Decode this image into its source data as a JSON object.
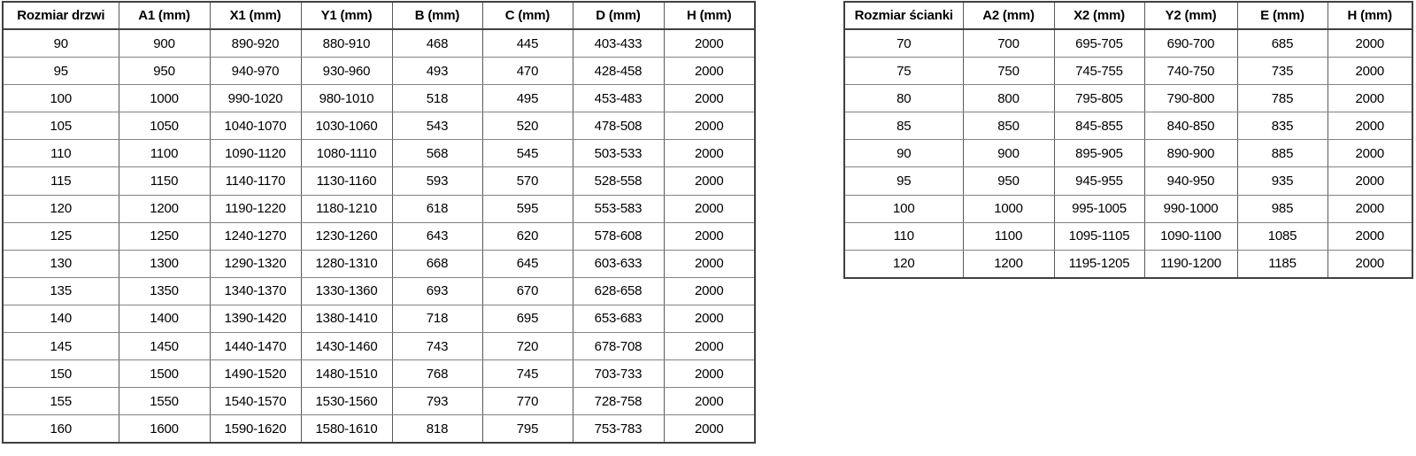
{
  "page": {
    "background": "#ffffff",
    "text_color": "#000000",
    "border_dark": "#404040",
    "border_gray": "#828282"
  },
  "left_table": {
    "headers": [
      "Rozmiar drzwi",
      "A1 (mm)",
      "X1 (mm)",
      "Y1 (mm)",
      "B (mm)",
      "C (mm)",
      "D (mm)",
      "H (mm)"
    ],
    "rows": [
      [
        "90",
        "900",
        "890-920",
        "880-910",
        "468",
        "445",
        "403-433",
        "2000"
      ],
      [
        "95",
        "950",
        "940-970",
        "930-960",
        "493",
        "470",
        "428-458",
        "2000"
      ],
      [
        "100",
        "1000",
        "990-1020",
        "980-1010",
        "518",
        "495",
        "453-483",
        "2000"
      ],
      [
        "105",
        "1050",
        "1040-1070",
        "1030-1060",
        "543",
        "520",
        "478-508",
        "2000"
      ],
      [
        "110",
        "1100",
        "1090-1120",
        "1080-1110",
        "568",
        "545",
        "503-533",
        "2000"
      ],
      [
        "115",
        "1150",
        "1140-1170",
        "1130-1160",
        "593",
        "570",
        "528-558",
        "2000"
      ],
      [
        "120",
        "1200",
        "1190-1220",
        "1180-1210",
        "618",
        "595",
        "553-583",
        "2000"
      ],
      [
        "125",
        "1250",
        "1240-1270",
        "1230-1260",
        "643",
        "620",
        "578-608",
        "2000"
      ],
      [
        "130",
        "1300",
        "1290-1320",
        "1280-1310",
        "668",
        "645",
        "603-633",
        "2000"
      ],
      [
        "135",
        "1350",
        "1340-1370",
        "1330-1360",
        "693",
        "670",
        "628-658",
        "2000"
      ],
      [
        "140",
        "1400",
        "1390-1420",
        "1380-1410",
        "718",
        "695",
        "653-683",
        "2000"
      ],
      [
        "145",
        "1450",
        "1440-1470",
        "1430-1460",
        "743",
        "720",
        "678-708",
        "2000"
      ],
      [
        "150",
        "1500",
        "1490-1520",
        "1480-1510",
        "768",
        "745",
        "703-733",
        "2000"
      ],
      [
        "155",
        "1550",
        "1540-1570",
        "1530-1560",
        "793",
        "770",
        "728-758",
        "2000"
      ],
      [
        "160",
        "1600",
        "1590-1620",
        "1580-1610",
        "818",
        "795",
        "753-783",
        "2000"
      ]
    ]
  },
  "right_table": {
    "headers": [
      "Rozmiar ścianki",
      "A2 (mm)",
      "X2 (mm)",
      "Y2 (mm)",
      "E (mm)",
      "H (mm)"
    ],
    "rows": [
      [
        "70",
        "700",
        "695-705",
        "690-700",
        "685",
        "2000"
      ],
      [
        "75",
        "750",
        "745-755",
        "740-750",
        "735",
        "2000"
      ],
      [
        "80",
        "800",
        "795-805",
        "790-800",
        "785",
        "2000"
      ],
      [
        "85",
        "850",
        "845-855",
        "840-850",
        "835",
        "2000"
      ],
      [
        "90",
        "900",
        "895-905",
        "890-900",
        "885",
        "2000"
      ],
      [
        "95",
        "950",
        "945-955",
        "940-950",
        "935",
        "2000"
      ],
      [
        "100",
        "1000",
        "995-1005",
        "990-1000",
        "985",
        "2000"
      ],
      [
        "110",
        "1100",
        "1095-1105",
        "1090-1100",
        "1085",
        "2000"
      ],
      [
        "120",
        "1200",
        "1195-1205",
        "1190-1200",
        "1185",
        "2000"
      ]
    ]
  }
}
